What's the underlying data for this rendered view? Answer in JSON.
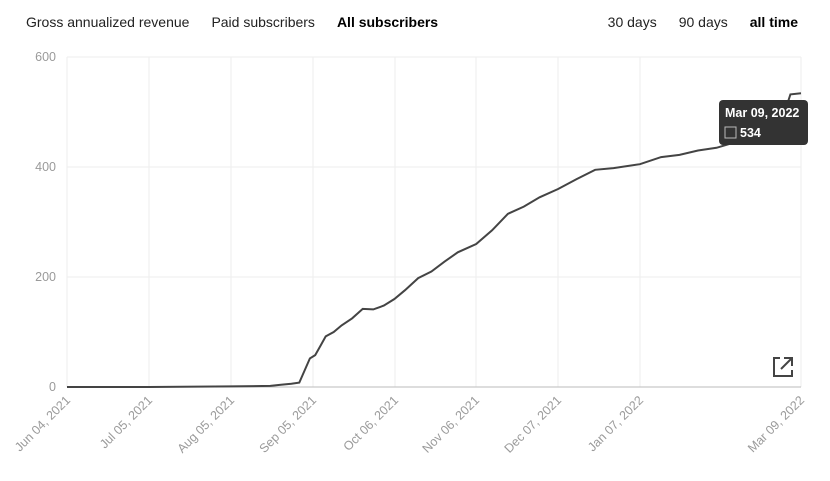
{
  "tabs": [
    {
      "label": "Gross annualized revenue",
      "active": false
    },
    {
      "label": "Paid subscribers",
      "active": false
    },
    {
      "label": "All subscribers",
      "active": true
    }
  ],
  "ranges": [
    {
      "label": "30 days",
      "active": false
    },
    {
      "label": "90 days",
      "active": false
    },
    {
      "label": "all time",
      "active": true
    }
  ],
  "tooltip": {
    "date": "Mar 09, 2022",
    "value": "534"
  },
  "external_link_icon": "external-link-icon",
  "colors": {
    "line": "#444444",
    "grid": "#eeeeee",
    "tooltip_bg": "#333333"
  },
  "chart_data": {
    "type": "line",
    "title": "",
    "xlabel": "",
    "ylabel": "",
    "ylim": [
      0,
      600
    ],
    "yticks": [
      "0",
      "200",
      "400",
      "600"
    ],
    "grid": true,
    "xtick_labels": [
      "Jun 04, 2021",
      "Jul 05, 2021",
      "Aug 05, 2021",
      "Sep 05, 2021",
      "Oct 06, 2021",
      "Nov 06, 2021",
      "Dec 07, 2021",
      "Jan 07, 2022",
      "Mar 09, 2022"
    ],
    "series": [
      {
        "x": [
          "2021-06-04",
          "2021-07-05",
          "2021-08-05",
          "2021-08-20",
          "2021-08-24",
          "2021-08-28",
          "2021-08-31",
          "2021-09-02",
          "2021-09-04",
          "2021-09-06",
          "2021-09-08",
          "2021-09-10",
          "2021-09-13",
          "2021-09-16",
          "2021-09-20",
          "2021-09-24",
          "2021-09-28",
          "2021-10-02",
          "2021-10-06",
          "2021-10-10",
          "2021-10-15",
          "2021-10-20",
          "2021-10-25",
          "2021-10-30",
          "2021-11-06",
          "2021-11-12",
          "2021-11-18",
          "2021-11-24",
          "2021-11-30",
          "2021-12-07",
          "2021-12-14",
          "2021-12-21",
          "2021-12-28",
          "2022-01-07",
          "2022-01-15",
          "2022-01-22",
          "2022-01-29",
          "2022-02-05",
          "2022-02-12",
          "2022-02-19",
          "2022-02-26",
          "2022-03-02",
          "2022-03-05",
          "2022-03-09"
        ],
        "y": [
          0,
          0,
          1,
          2,
          4,
          6,
          8,
          30,
          52,
          58,
          75,
          92,
          100,
          112,
          125,
          142,
          141,
          148,
          160,
          176,
          198,
          210,
          228,
          245,
          260,
          285,
          315,
          328,
          345,
          360,
          378,
          395,
          398,
          405,
          418,
          422,
          430,
          435,
          445,
          460,
          478,
          488,
          532,
          534
        ]
      }
    ]
  }
}
